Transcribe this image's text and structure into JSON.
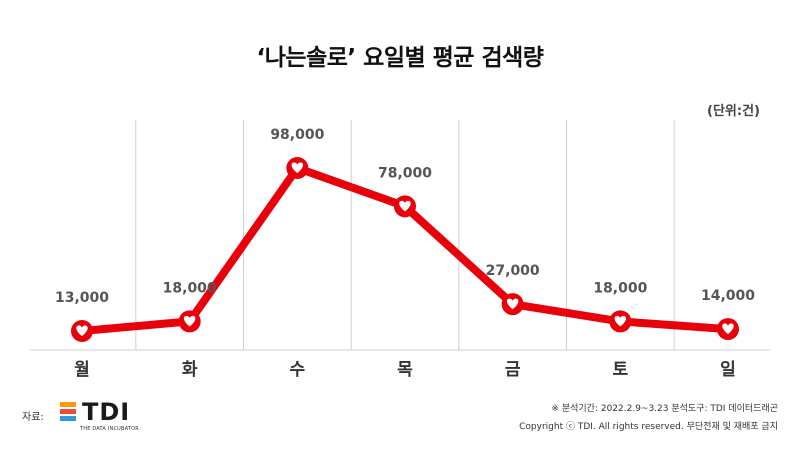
{
  "title": "‘나는솔로’ 요일별 평균 검색량",
  "unit_note": "(단위:건)",
  "colors": {
    "line": "#e8000b",
    "gridline": "#cfcfcf",
    "label": "#555555",
    "tick": "#333333"
  },
  "chart_data": {
    "type": "line",
    "categories": [
      "월",
      "화",
      "수",
      "목",
      "금",
      "토",
      "일"
    ],
    "series": [
      {
        "values": [
          13000,
          18000,
          98000,
          78000,
          27000,
          18000,
          14000
        ]
      }
    ],
    "data_labels": [
      "13,000",
      "18,000",
      "98,000",
      "78,000",
      "27,000",
      "18,000",
      "14,000"
    ],
    "ylim": [
      0,
      110000
    ],
    "grid": "vertical",
    "marker": "heart-in-circle"
  },
  "footer": {
    "source_label": "자료:",
    "logo_text": "TDI",
    "logo_subtext": "THE DATA INCUBATOR",
    "analysis_note": "※ 분석기간: 2022.2.9~3.23 분석도구: TDI 데이터드래곤",
    "copyright": "Copyright ⓒ TDI. All rights reserved. 무단전재 및 재배포 금지"
  }
}
